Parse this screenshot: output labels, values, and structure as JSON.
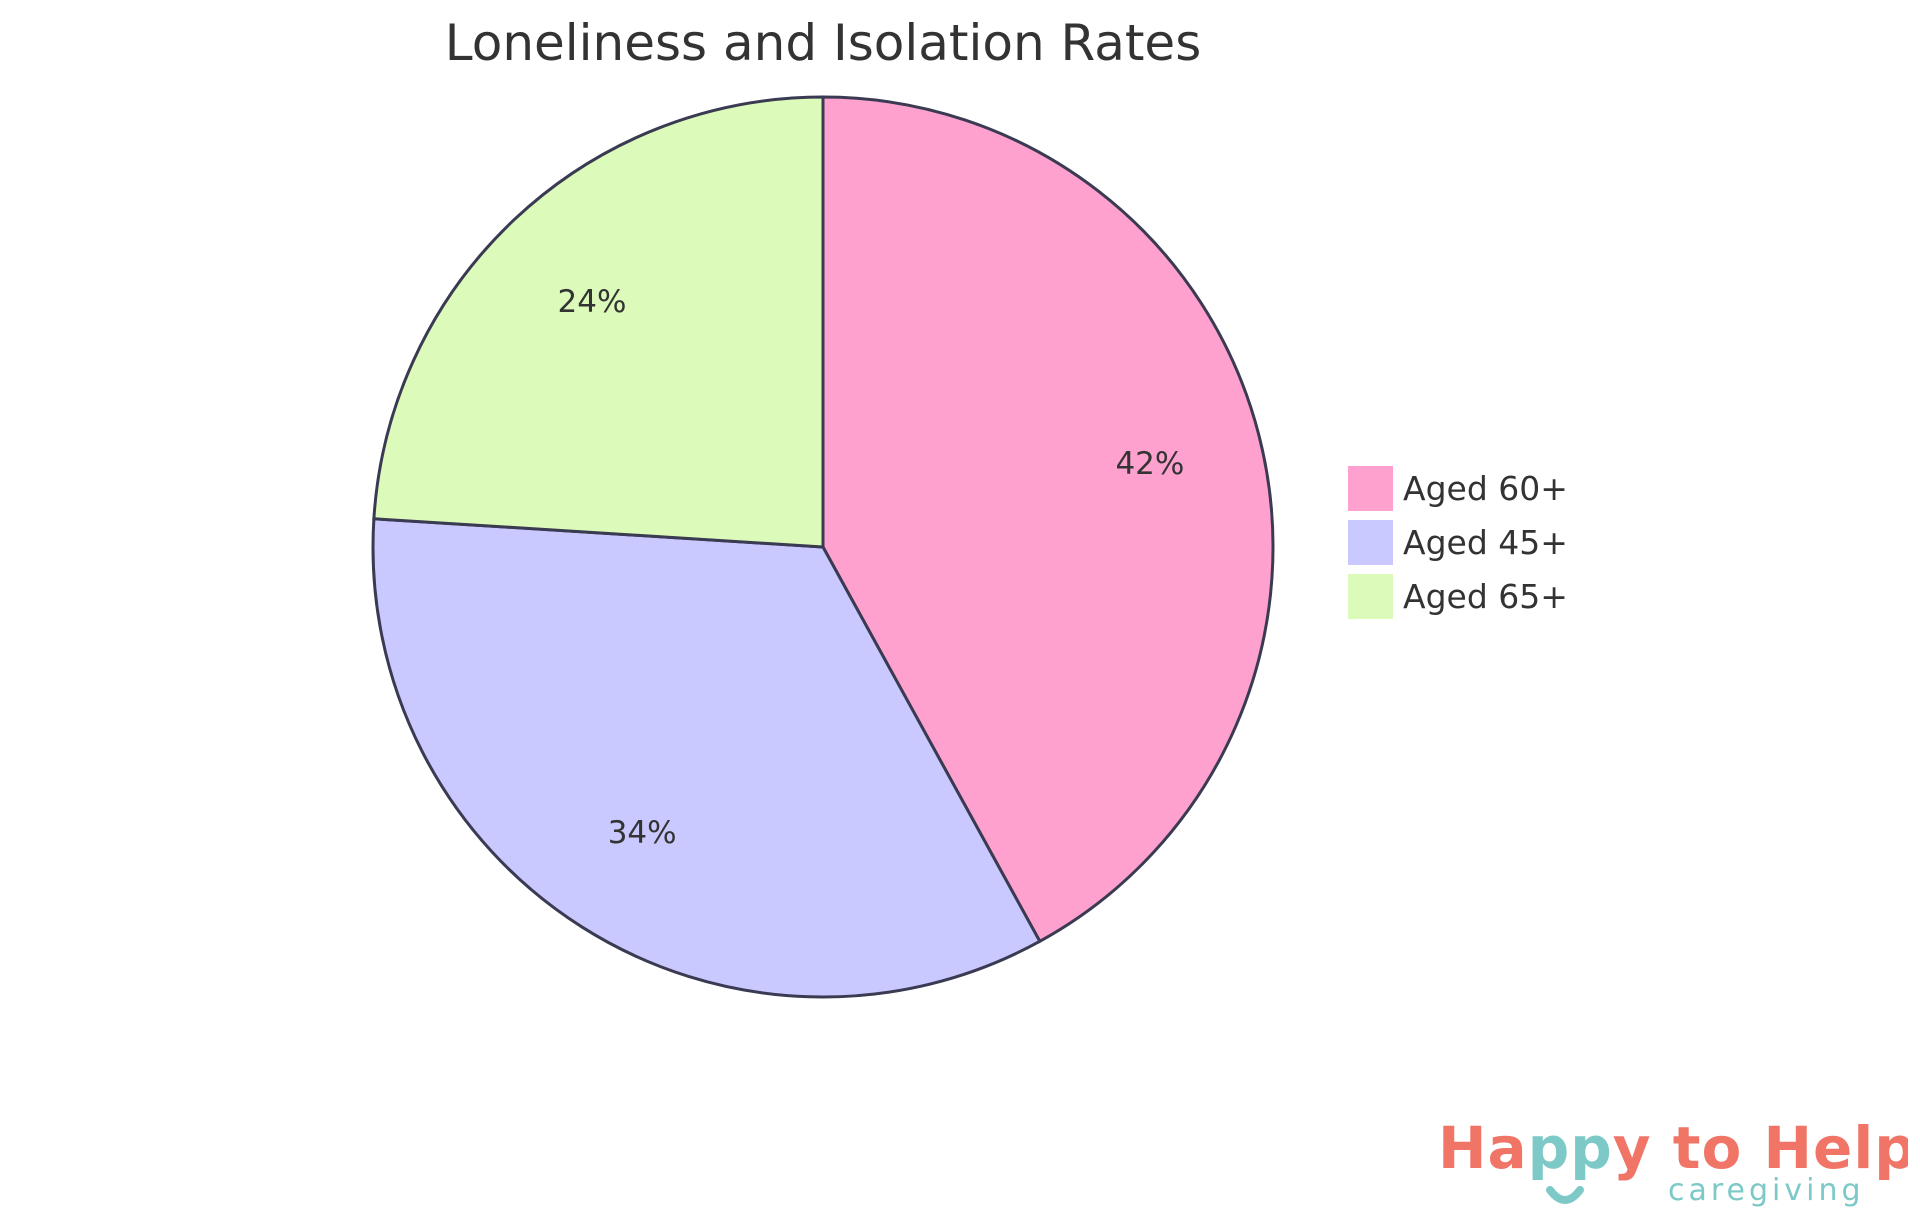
{
  "chart_data": {
    "type": "pie",
    "title": "Loneliness and Isolation Rates",
    "slices": [
      {
        "label": "Aged 60+",
        "value": 42,
        "display": "42%",
        "color": "#FFA1CE"
      },
      {
        "label": "Aged 45+",
        "value": 34,
        "display": "34%",
        "color": "#C9C9FF"
      },
      {
        "label": "Aged 65+",
        "value": 24,
        "display": "24%",
        "color": "#DCFABA"
      }
    ],
    "start_angle": "top",
    "direction": "clockwise",
    "stroke_color": "#3A3A52",
    "legend_placement": "right"
  },
  "logo": {
    "main_text": "Happy to Help",
    "sub_text": "caregiving",
    "colors": {
      "coral": "#F07567",
      "teal": "#7CC9C8"
    }
  }
}
